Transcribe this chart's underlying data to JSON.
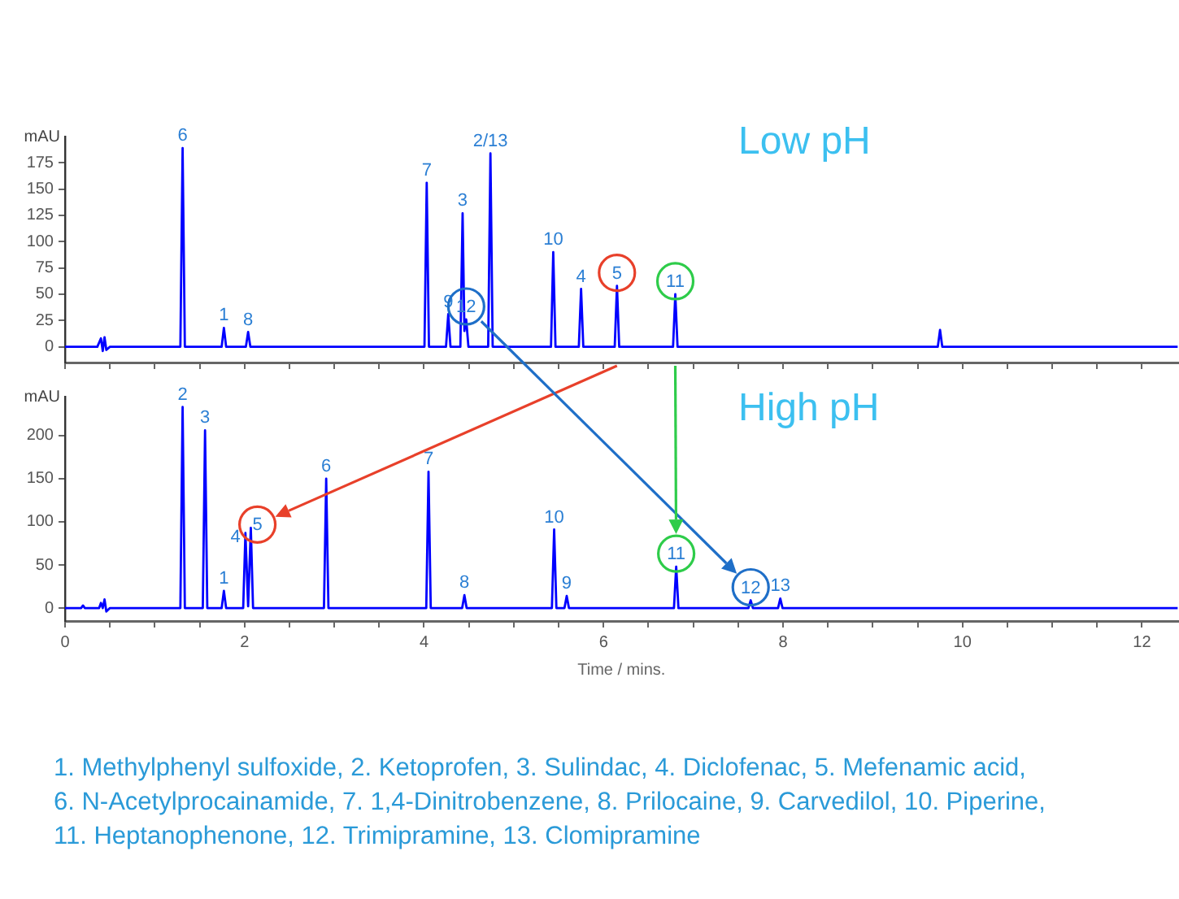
{
  "chart_data": [
    {
      "type": "line",
      "title": "Low pH",
      "ylabel": "mAU",
      "color": "#0000ff",
      "x": [
        0,
        0.36,
        0.4,
        0.42,
        0.44,
        0.46,
        0.5,
        1.285,
        1.31,
        1.335,
        1.745,
        1.77,
        1.795,
        2.015,
        2.04,
        2.065,
        4.005,
        4.03,
        4.055,
        4.245,
        4.27,
        4.295,
        4.405,
        4.43,
        4.45,
        4.47,
        4.495,
        4.715,
        4.74,
        4.765,
        5.415,
        5.44,
        5.465,
        5.725,
        5.75,
        5.775,
        6.125,
        6.15,
        6.175,
        6.775,
        6.8,
        6.825,
        9.725,
        9.75,
        9.775,
        12.4
      ],
      "values": [
        0,
        0,
        8,
        -4,
        9,
        -3,
        0,
        0,
        189,
        0,
        0,
        18,
        0,
        0,
        14,
        0,
        0,
        156,
        0,
        0,
        31,
        0,
        0,
        127,
        15,
        26,
        0,
        0,
        184,
        0,
        0,
        90,
        0,
        0,
        55,
        0,
        0,
        58,
        0,
        0,
        50,
        0,
        0,
        16,
        0,
        0
      ],
      "xlim": [
        0,
        12.4
      ],
      "ylim": [
        -15,
        200
      ],
      "xticks": [
        0,
        {
          "value": 0.5,
          "label": null
        },
        {
          "value": 1,
          "label": null
        },
        {
          "value": 1.5,
          "label": null
        },
        2,
        {
          "value": 2.5,
          "label": null
        },
        {
          "value": 3,
          "label": null
        },
        {
          "value": 3.5,
          "label": null
        },
        4,
        {
          "value": 4.5,
          "label": null
        },
        {
          "value": 5,
          "label": null
        },
        {
          "value": 5.5,
          "label": null
        },
        6,
        {
          "value": 6.5,
          "label": null
        },
        {
          "value": 7,
          "label": null
        },
        {
          "value": 7.5,
          "label": null
        },
        8,
        {
          "value": 8.5,
          "label": null
        },
        {
          "value": 9,
          "label": null
        },
        {
          "value": 9.5,
          "label": null
        },
        10,
        {
          "value": 10.5,
          "label": null
        },
        {
          "value": 11,
          "label": null
        },
        {
          "value": 11.5,
          "label": null
        },
        12
      ],
      "yticks": [
        0,
        25,
        50,
        75,
        100,
        125,
        150,
        175
      ],
      "tick_labels": "y",
      "annotations": [
        {
          "text": "6",
          "x": 1.31,
          "y": 189
        },
        {
          "text": "1",
          "x": 1.77,
          "y": 18
        },
        {
          "text": "8",
          "x": 2.04,
          "y": 14
        },
        {
          "text": "7",
          "x": 4.03,
          "y": 156
        },
        {
          "text": "9",
          "x": 4.27,
          "y": 31
        },
        {
          "text": "3",
          "x": 4.43,
          "y": 127
        },
        {
          "text": "12",
          "x": 4.47,
          "y": 26
        },
        {
          "text": "2/13",
          "x": 4.74,
          "y": 184
        },
        {
          "text": "10",
          "x": 5.44,
          "y": 90
        },
        {
          "text": "4",
          "x": 5.75,
          "y": 55
        },
        {
          "text": "5",
          "x": 6.15,
          "y": 58
        },
        {
          "text": "11",
          "x": 6.8,
          "y": 50
        }
      ]
    },
    {
      "type": "line",
      "title": "High pH",
      "ylabel": "mAU",
      "xlabel": "Time / mins.",
      "color": "#0000ff",
      "x": [
        0,
        0.18,
        0.2,
        0.22,
        0.38,
        0.4,
        0.42,
        0.44,
        0.46,
        0.5,
        1.285,
        1.31,
        1.335,
        1.535,
        1.56,
        1.585,
        1.745,
        1.77,
        1.795,
        1.985,
        2.01,
        2.04,
        2.07,
        2.095,
        2.885,
        2.91,
        2.935,
        4.025,
        4.05,
        4.075,
        4.425,
        4.45,
        4.475,
        5.425,
        5.45,
        5.475,
        5.565,
        5.59,
        5.615,
        6.785,
        6.81,
        6.835,
        7.615,
        7.64,
        7.665,
        7.945,
        7.97,
        7.995,
        12.4
      ],
      "values": [
        0,
        0,
        3,
        0,
        0,
        6,
        0,
        10,
        -4,
        0,
        0,
        233,
        0,
        0,
        206,
        0,
        0,
        20,
        0,
        0,
        87,
        2,
        93,
        0,
        0,
        150,
        0,
        0,
        158,
        0,
        0,
        15,
        0,
        0,
        91,
        0,
        0,
        14,
        0,
        0,
        48,
        0,
        0,
        9,
        0,
        0,
        11,
        0,
        0
      ],
      "xlim": [
        0,
        12.4
      ],
      "ylim": [
        -15,
        245
      ],
      "xticks": [
        0,
        {
          "value": 0.5,
          "label": null
        },
        {
          "value": 1,
          "label": null
        },
        {
          "value": 1.5,
          "label": null
        },
        2,
        {
          "value": 2.5,
          "label": null
        },
        {
          "value": 3,
          "label": null
        },
        {
          "value": 3.5,
          "label": null
        },
        4,
        {
          "value": 4.5,
          "label": null
        },
        {
          "value": 5,
          "label": null
        },
        {
          "value": 5.5,
          "label": null
        },
        6,
        {
          "value": 6.5,
          "label": null
        },
        {
          "value": 7,
          "label": null
        },
        {
          "value": 7.5,
          "label": null
        },
        8,
        {
          "value": 8.5,
          "label": null
        },
        {
          "value": 9,
          "label": null
        },
        {
          "value": 9.5,
          "label": null
        },
        10,
        {
          "value": 10.5,
          "label": null
        },
        {
          "value": 11,
          "label": null
        },
        {
          "value": 11.5,
          "label": null
        },
        12
      ],
      "yticks": [
        0,
        50,
        100,
        150,
        200
      ],
      "annotations": [
        {
          "text": "2",
          "x": 1.31,
          "y": 233
        },
        {
          "text": "3",
          "x": 1.56,
          "y": 206
        },
        {
          "text": "1",
          "x": 1.77,
          "y": 20
        },
        {
          "text": "4",
          "x": 2.01,
          "y": 87
        },
        {
          "text": "5",
          "x": 2.07,
          "y": 93
        },
        {
          "text": "6",
          "x": 2.91,
          "y": 150
        },
        {
          "text": "7",
          "x": 4.05,
          "y": 158
        },
        {
          "text": "8",
          "x": 4.45,
          "y": 15
        },
        {
          "text": "10",
          "x": 5.45,
          "y": 91
        },
        {
          "text": "9",
          "x": 5.59,
          "y": 14
        },
        {
          "text": "11",
          "x": 6.81,
          "y": 48
        },
        {
          "text": "12",
          "x": 7.64,
          "y": 9
        },
        {
          "text": "13",
          "x": 7.97,
          "y": 11
        },
        "1. Methylphenyl sulfoxide, 2. Ketoprofen, 3. Sulindac, 4. Diclofenac, 5. Mefenamic acid,",
        "6. N-Acetylprocainamide, 7. 1,4-Dinitrobenzene, 8. Prilocaine, 9. Carvedilol, 10. Piperine,",
        "11. Heptanophenone, 12. Trimipramine, 13. Clomipramine"
      ]
    }
  ]
}
